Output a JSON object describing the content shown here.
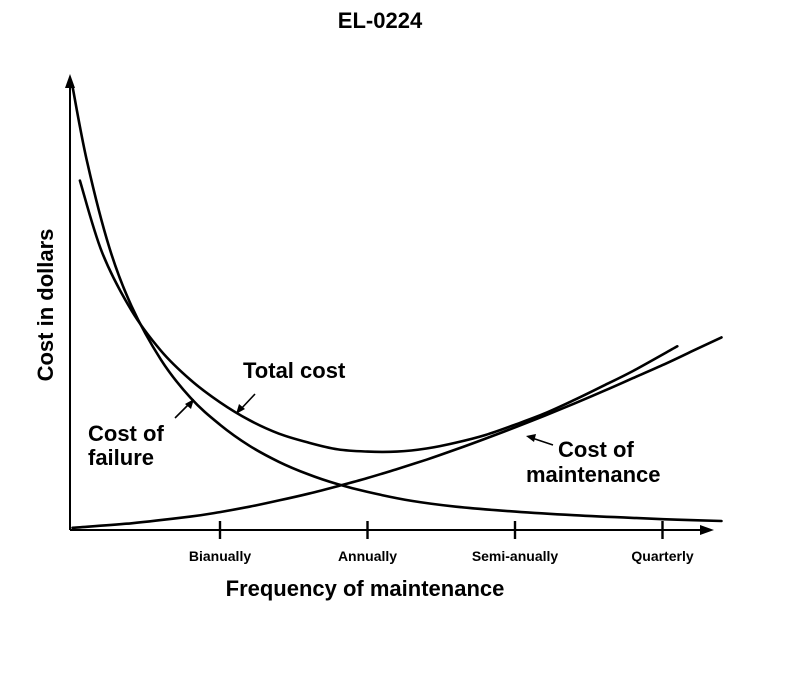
{
  "chart_data": {
    "type": "line",
    "title": "EL-0224",
    "xlabel": "Frequency of maintenance",
    "ylabel": "Cost in dollars",
    "categories": [
      "Bianually",
      "Annually",
      "Semi-anually",
      "Quarterly"
    ],
    "xlim": [
      -1.0,
      3.4
    ],
    "ylim": [
      0,
      100
    ],
    "grid": false,
    "legend": "none",
    "series": [
      {
        "name": "Total cost",
        "x": [
          -0.95,
          -0.8,
          -0.6,
          -0.4,
          -0.2,
          0.0,
          0.2,
          0.4,
          0.6,
          0.8,
          1.0,
          1.2,
          1.4,
          1.6,
          1.8,
          2.0,
          2.2,
          2.4,
          2.6,
          2.8,
          3.1
        ],
        "y": [
          78,
          62,
          49,
          40,
          33.5,
          28.5,
          24.5,
          21.5,
          19.5,
          18,
          17.5,
          17.5,
          18.2,
          19.5,
          21.2,
          23.5,
          26,
          29,
          32.2,
          35.5,
          41
        ]
      },
      {
        "name": "Cost of failure",
        "x": [
          -1.0,
          -0.9,
          -0.75,
          -0.6,
          -0.4,
          -0.2,
          0.0,
          0.2,
          0.4,
          0.6,
          0.8,
          1.0,
          1.3,
          1.6,
          2.0,
          2.4,
          2.8,
          3.1,
          3.4
        ],
        "y": [
          99,
          82,
          63,
          50,
          38,
          29.5,
          23.5,
          18.8,
          15.2,
          12.4,
          10.2,
          8.5,
          6.5,
          5.2,
          4.1,
          3.3,
          2.7,
          2.3,
          2.0
        ]
      },
      {
        "name": "Cost of maintenance",
        "x": [
          -1.0,
          -0.6,
          -0.2,
          0.0,
          0.2,
          0.4,
          0.6,
          0.8,
          1.0,
          1.2,
          1.4,
          1.6,
          1.8,
          2.0,
          2.2,
          2.4,
          2.6,
          2.8,
          3.0,
          3.2,
          3.4
        ],
        "y": [
          0.5,
          1.5,
          3.0,
          4.0,
          5.2,
          6.6,
          8.1,
          9.8,
          11.6,
          13.6,
          15.7,
          18.0,
          20.4,
          22.9,
          25.5,
          28.2,
          31.0,
          33.9,
          36.8,
          39.9,
          43.0
        ]
      }
    ],
    "annotations": [
      {
        "text": "Total cost",
        "series": "Total cost"
      },
      {
        "text": "Cost of failure",
        "lines": [
          "Cost of",
          "failure"
        ],
        "series": "Cost of failure"
      },
      {
        "text": "Cost of maintenance",
        "lines": [
          "Cost of",
          "maintenance"
        ],
        "series": "Cost of maintenance"
      }
    ]
  }
}
